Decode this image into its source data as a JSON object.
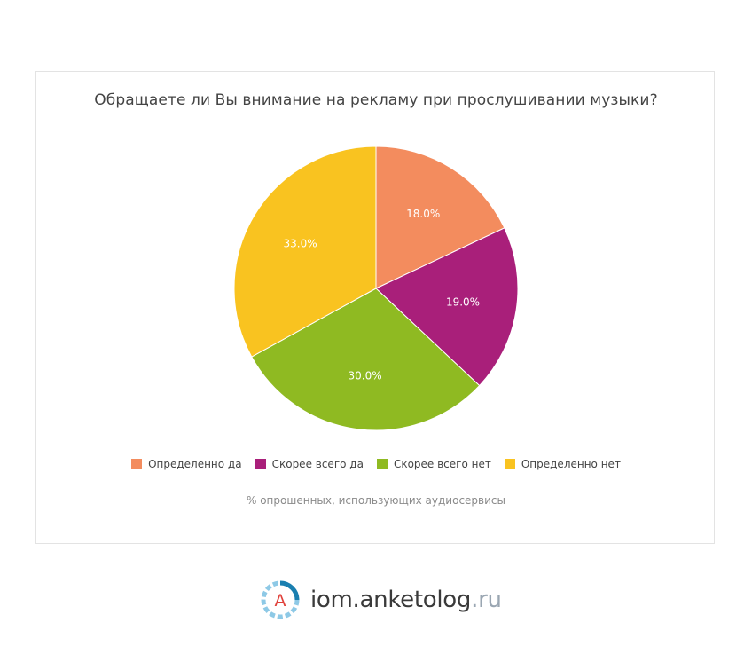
{
  "chart_data": {
    "type": "pie",
    "title": "Обращаете ли Вы внимание на рекламу при прослушивании музыки?",
    "subtitle": "% опрошенных, использующих аудиосервисы",
    "categories": [
      "Определенно да",
      "Скорее всего да",
      "Скорее всего нет",
      "Определенно нет"
    ],
    "values": [
      18.0,
      19.0,
      30.0,
      33.0
    ],
    "value_labels": [
      "18.0%",
      "19.0%",
      "30.0%",
      "33.0%"
    ],
    "colors": [
      "#f38c5e",
      "#a91f7a",
      "#8fba22",
      "#f9c320"
    ],
    "start_angle": "top",
    "direction": "clockwise",
    "legend_position": "bottom"
  },
  "brand": {
    "name": "iom.anketolog",
    "tld": ".ru",
    "logo_letter": "A"
  }
}
